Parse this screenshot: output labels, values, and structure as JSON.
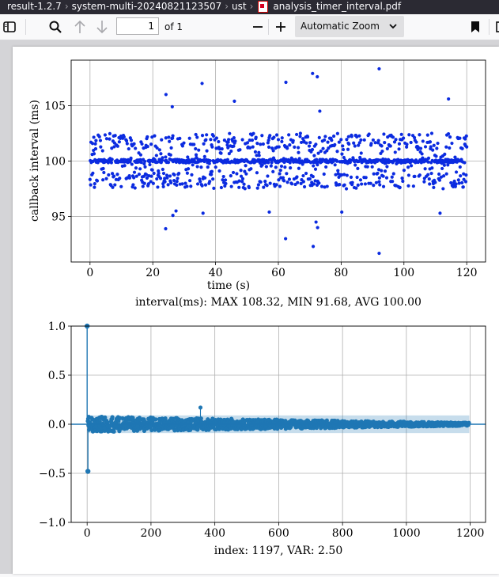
{
  "breadcrumb": {
    "items": [
      "result-1.2.7",
      "system-multi-20240821123507",
      "ust"
    ],
    "file_name": "analysis_timer_interval.pdf"
  },
  "toolbar": {
    "page_number": "1",
    "page_count_label": "of 1",
    "zoom_label": "Automatic Zoom",
    "icons": [
      "sidebar-toggle-icon",
      "search-icon",
      "arrow-up-icon",
      "arrow-down-icon",
      "minus-icon",
      "plus-icon",
      "chevron-down-icon",
      "bookmark-icon"
    ]
  },
  "chart_data": [
    {
      "type": "scatter",
      "xlabel": "time (s)",
      "ylabel": "callback interval (ms)",
      "caption": "interval(ms): MAX 108.32, MIN 91.68, AVG 100.00",
      "xlim": [
        -6,
        126
      ],
      "ylim": [
        90.9,
        109.1
      ],
      "xticks": [
        "0",
        "20",
        "40",
        "60",
        "80",
        "100",
        "120"
      ],
      "yticks": [
        "95",
        "100",
        "105"
      ],
      "grid": true,
      "color": "#0b2be0",
      "summary": {
        "max": 108.32,
        "min": 91.68,
        "avg": 100.0,
        "count": 1197,
        "x_range": [
          0,
          120
        ]
      },
      "outliers": [
        {
          "x": 92.1,
          "y": 108.32
        },
        {
          "x": 70.9,
          "y": 107.9
        },
        {
          "x": 72.4,
          "y": 107.6
        },
        {
          "x": 62.4,
          "y": 107.1
        },
        {
          "x": 35.7,
          "y": 107.0
        },
        {
          "x": 24.2,
          "y": 106.0
        },
        {
          "x": 114.2,
          "y": 105.6
        },
        {
          "x": 46.0,
          "y": 105.4
        },
        {
          "x": 26.2,
          "y": 104.9
        },
        {
          "x": 73.2,
          "y": 104.5
        },
        {
          "x": 92.1,
          "y": 91.68
        },
        {
          "x": 71.1,
          "y": 92.3
        },
        {
          "x": 62.3,
          "y": 93.0
        },
        {
          "x": 24.1,
          "y": 93.9
        },
        {
          "x": 72.5,
          "y": 94.0
        },
        {
          "x": 72.0,
          "y": 94.5
        },
        {
          "x": 26.4,
          "y": 95.1
        },
        {
          "x": 27.4,
          "y": 95.5
        },
        {
          "x": 36.0,
          "y": 95.3
        },
        {
          "x": 57.1,
          "y": 95.4
        },
        {
          "x": 111.5,
          "y": 95.3
        },
        {
          "x": 80.2,
          "y": 95.4
        }
      ]
    },
    {
      "type": "stem",
      "caption": "index: 1197, VAR: 2.50",
      "xlim": [
        -50,
        1248
      ],
      "ylim": [
        -1.0,
        1.0
      ],
      "xticks": [
        "0",
        "200",
        "400",
        "600",
        "800",
        "1000",
        "1200"
      ],
      "yticks": [
        "−1.0",
        "−0.5",
        "0.0",
        "0.5",
        "1.0"
      ],
      "grid": true,
      "color": "#1f77b4",
      "summary": {
        "lag0": 1.0,
        "lag1": -0.48,
        "spike_x": 355,
        "spike_y": 0.17,
        "band": 0.09,
        "count": 1197
      }
    }
  ]
}
